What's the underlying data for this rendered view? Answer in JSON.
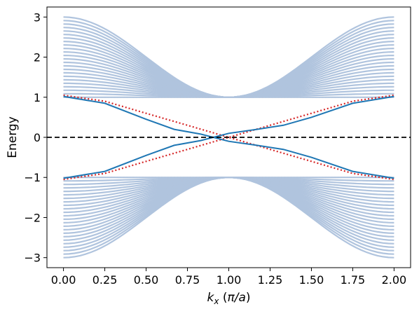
{
  "chart_data": {
    "type": "line",
    "title": "",
    "xlabel_parts": [
      "k",
      "x",
      " (",
      "π/a",
      ")"
    ],
    "ylabel": "Energy",
    "xlim": [
      -0.1,
      2.1
    ],
    "ylim": [
      -3.25,
      3.25
    ],
    "x_ticks": [
      "0.00",
      "0.25",
      "0.50",
      "0.75",
      "1.00",
      "1.25",
      "1.50",
      "1.75",
      "2.00"
    ],
    "x_tick_values": [
      0,
      0.25,
      0.5,
      0.75,
      1.0,
      1.25,
      1.5,
      1.75,
      2.0
    ],
    "y_ticks": [
      "−3",
      "−2",
      "−1",
      "0",
      "1",
      "2",
      "3"
    ],
    "y_tick_values": [
      -3,
      -2,
      -1,
      0,
      1,
      2,
      3
    ],
    "grid": false,
    "legend": "none",
    "bulk_bands": {
      "count_per_branch": 24,
      "E_at_edges_max": 3.0,
      "E_at_edges_min": 1.0,
      "E_at_center": 1.0,
      "solid_color": "#b0c4de",
      "dotted_color": "#ff9966"
    },
    "edge_states": {
      "solid_color": "#1f77b4",
      "dotted_color": "#d62728",
      "solid_upper": [
        [
          0,
          1.02
        ],
        [
          0.25,
          0.85
        ],
        [
          0.5,
          0.45
        ],
        [
          0.67,
          0.2
        ],
        [
          0.83,
          0.08
        ],
        [
          1.0,
          -0.1
        ],
        [
          1.17,
          -0.2
        ],
        [
          1.33,
          -0.3
        ],
        [
          1.5,
          -0.5
        ],
        [
          1.75,
          -0.85
        ],
        [
          2.0,
          -1.02
        ]
      ],
      "solid_lower": [
        [
          0,
          -1.02
        ],
        [
          0.25,
          -0.85
        ],
        [
          0.5,
          -0.45
        ],
        [
          0.67,
          -0.2
        ],
        [
          0.83,
          -0.08
        ],
        [
          1.0,
          0.1
        ],
        [
          1.17,
          0.2
        ],
        [
          1.33,
          0.3
        ],
        [
          1.5,
          0.5
        ],
        [
          1.75,
          0.85
        ],
        [
          2.0,
          1.02
        ]
      ],
      "dotted_upper": [
        [
          0,
          1.05
        ],
        [
          0.25,
          0.9
        ],
        [
          0.5,
          0.6
        ],
        [
          0.75,
          0.3
        ],
        [
          1.0,
          0.0
        ],
        [
          1.25,
          -0.3
        ],
        [
          1.5,
          -0.6
        ],
        [
          1.75,
          -0.9
        ],
        [
          2.0,
          -1.05
        ]
      ],
      "dotted_lower": [
        [
          0,
          -1.05
        ],
        [
          0.25,
          -0.9
        ],
        [
          0.5,
          -0.6
        ],
        [
          0.75,
          -0.3
        ],
        [
          1.0,
          0.0
        ],
        [
          1.25,
          0.3
        ],
        [
          1.5,
          0.6
        ],
        [
          1.75,
          0.9
        ],
        [
          2.0,
          1.05
        ]
      ]
    },
    "reference_line": {
      "y": 0,
      "style": "dashed",
      "color": "#000000"
    }
  }
}
